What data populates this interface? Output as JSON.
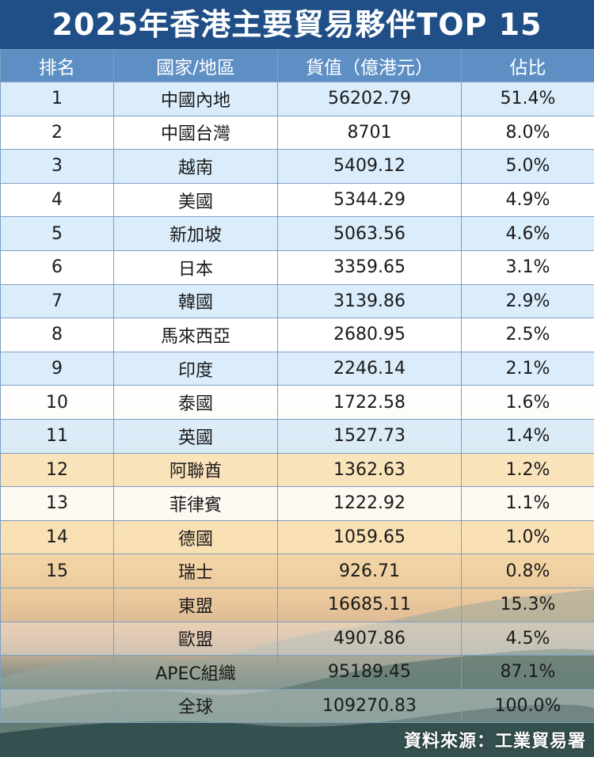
{
  "title": "2025年香港主要貿易夥伴TOP 15",
  "headers": {
    "rank": "排名",
    "region": "國家/地區",
    "value": "貨值（億港元）",
    "share": "佔比"
  },
  "rows": [
    {
      "rank": "1",
      "region": "中國內地",
      "value": "56202.79",
      "share": "51.4%"
    },
    {
      "rank": "2",
      "region": "中國台灣",
      "value": "8701",
      "share": "8.0%"
    },
    {
      "rank": "3",
      "region": "越南",
      "value": "5409.12",
      "share": "5.0%"
    },
    {
      "rank": "4",
      "region": "美國",
      "value": "5344.29",
      "share": "4.9%"
    },
    {
      "rank": "5",
      "region": "新加坡",
      "value": "5063.56",
      "share": "4.6%"
    },
    {
      "rank": "6",
      "region": "日本",
      "value": "3359.65",
      "share": "3.1%"
    },
    {
      "rank": "7",
      "region": "韓國",
      "value": "3139.86",
      "share": "2.9%"
    },
    {
      "rank": "8",
      "region": "馬來西亞",
      "value": "2680.95",
      "share": "2.5%"
    },
    {
      "rank": "9",
      "region": "印度",
      "value": "2246.14",
      "share": "2.1%"
    },
    {
      "rank": "10",
      "region": "泰國",
      "value": "1722.58",
      "share": "1.6%"
    },
    {
      "rank": "11",
      "region": "英國",
      "value": "1527.73",
      "share": "1.4%"
    },
    {
      "rank": "12",
      "region": "阿聯酋",
      "value": "1362.63",
      "share": "1.2%"
    },
    {
      "rank": "13",
      "region": "菲律賓",
      "value": "1222.92",
      "share": "1.1%"
    },
    {
      "rank": "14",
      "region": "德國",
      "value": "1059.65",
      "share": "1.0%"
    },
    {
      "rank": "15",
      "region": "瑞士",
      "value": "926.71",
      "share": "0.8%"
    },
    {
      "rank": "",
      "region": "東盟",
      "value": "16685.11",
      "share": "15.3%"
    },
    {
      "rank": "",
      "region": "歐盟",
      "value": "4907.86",
      "share": "4.5%"
    },
    {
      "rank": "",
      "region": "APEC組織",
      "value": "95189.45",
      "share": "87.1%"
    },
    {
      "rank": "",
      "region": "全球",
      "value": "109270.83",
      "share": "100.0%"
    }
  ],
  "source": "資料來源：工業貿易署",
  "colors": {
    "title_bg": "#1f4f86",
    "header_bg": "#5e8fc4",
    "row_alt": "#d6eafa"
  }
}
